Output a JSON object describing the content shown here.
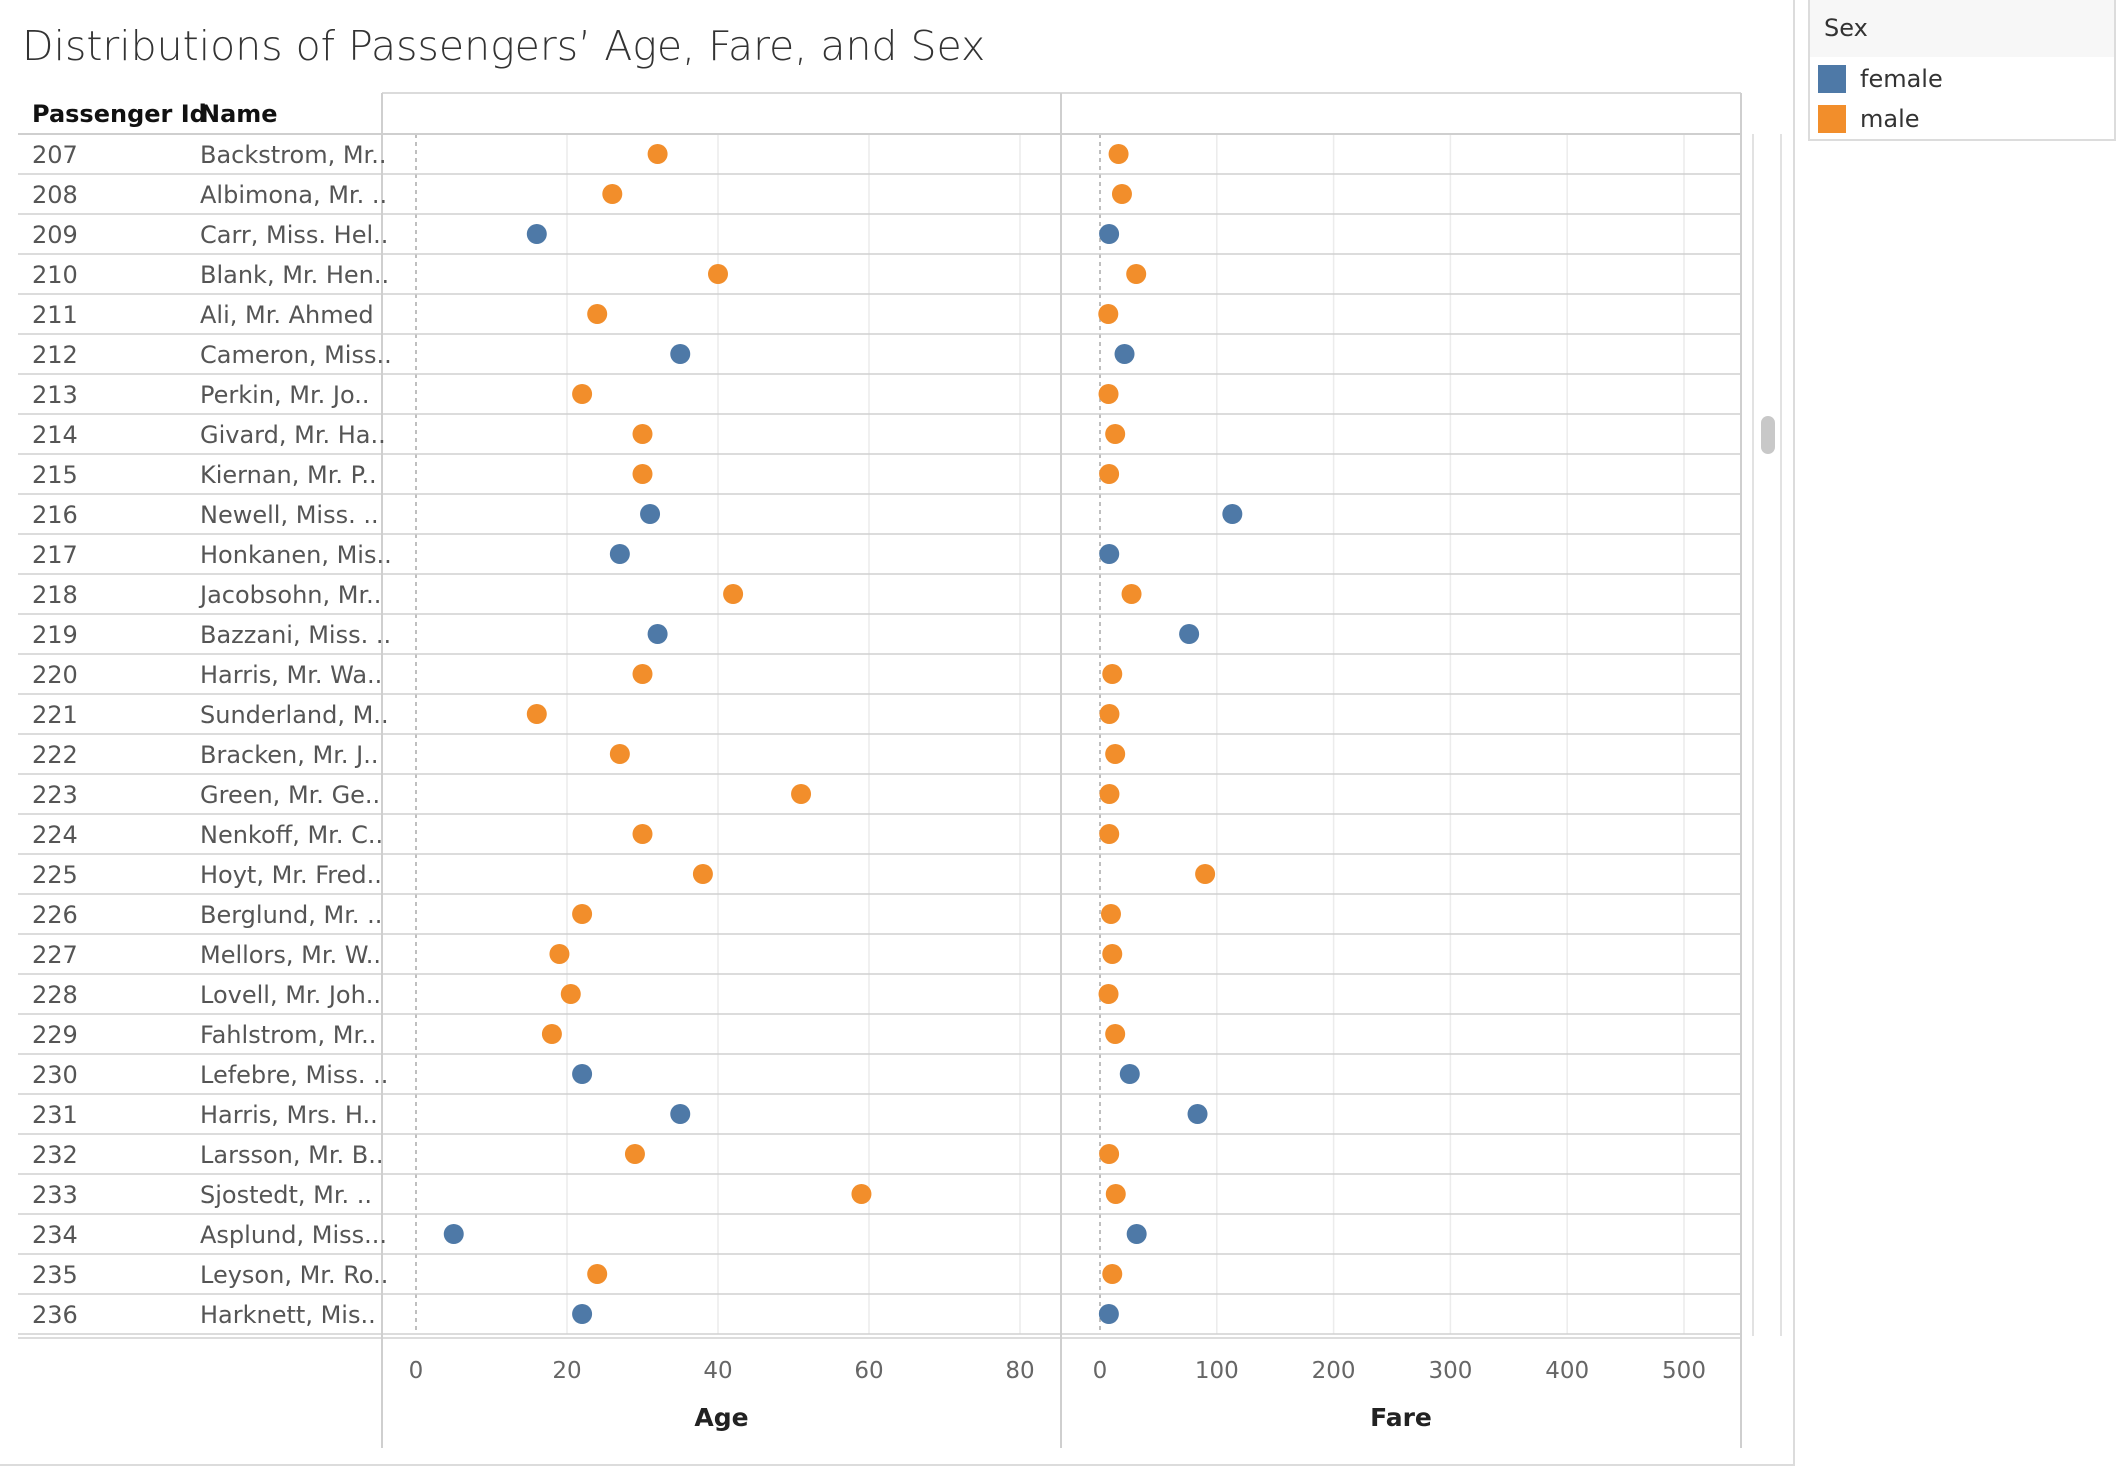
{
  "title": "Distributions of Passengers’ Age, Fare, and Sex",
  "columns": {
    "id_header": "Passenger Id",
    "name_header": "Name"
  },
  "legend": {
    "title": "Sex",
    "items": [
      {
        "label": "female",
        "color": "#4e79a7"
      },
      {
        "label": "male",
        "color": "#f28e2b"
      }
    ]
  },
  "chart_data": {
    "type": "scatter",
    "title": "Distributions of Passengers’ Age, Fare, and Sex",
    "panels": [
      {
        "field": "age",
        "xlabel": "Age",
        "xlim": [
          -4,
          88
        ],
        "ticks": [
          0,
          20,
          40,
          60,
          80
        ]
      },
      {
        "field": "fare",
        "xlabel": "Fare",
        "xlim": [
          -10,
          540
        ],
        "ticks": [
          0,
          100,
          200,
          300,
          400,
          500
        ]
      }
    ],
    "grid": true,
    "legend_position": "top-right",
    "rows": [
      {
        "id": "207",
        "name": "Backstrom, Mr..",
        "sex": "male",
        "age": 32,
        "fare": 15.9
      },
      {
        "id": "208",
        "name": "Albimona, Mr. ..",
        "sex": "male",
        "age": 26,
        "fare": 18.8
      },
      {
        "id": "209",
        "name": "Carr, Miss. Hel..",
        "sex": "female",
        "age": 16,
        "fare": 7.8
      },
      {
        "id": "210",
        "name": "Blank, Mr. Hen..",
        "sex": "male",
        "age": 40,
        "fare": 31
      },
      {
        "id": "211",
        "name": "Ali, Mr. Ahmed",
        "sex": "male",
        "age": 24,
        "fare": 7.1
      },
      {
        "id": "212",
        "name": "Cameron, Miss..",
        "sex": "female",
        "age": 35,
        "fare": 21
      },
      {
        "id": "213",
        "name": "Perkin, Mr. Jo..",
        "sex": "male",
        "age": 22,
        "fare": 7.3
      },
      {
        "id": "214",
        "name": "Givard, Mr. Ha..",
        "sex": "male",
        "age": 30,
        "fare": 13
      },
      {
        "id": "215",
        "name": "Kiernan, Mr. P..",
        "sex": "male",
        "age": 30,
        "fare": 7.8
      },
      {
        "id": "216",
        "name": "Newell, Miss. ..",
        "sex": "female",
        "age": 31,
        "fare": 113.3
      },
      {
        "id": "217",
        "name": "Honkanen, Mis..",
        "sex": "female",
        "age": 27,
        "fare": 7.9
      },
      {
        "id": "218",
        "name": "Jacobsohn, Mr..",
        "sex": "male",
        "age": 42,
        "fare": 27
      },
      {
        "id": "219",
        "name": "Bazzani, Miss. ..",
        "sex": "female",
        "age": 32,
        "fare": 76.3
      },
      {
        "id": "220",
        "name": "Harris, Mr. Wa..",
        "sex": "male",
        "age": 30,
        "fare": 10.5
      },
      {
        "id": "221",
        "name": "Sunderland, M..",
        "sex": "male",
        "age": 16,
        "fare": 8.1
      },
      {
        "id": "222",
        "name": "Bracken, Mr. J..",
        "sex": "male",
        "age": 27,
        "fare": 13
      },
      {
        "id": "223",
        "name": "Green, Mr. Ge..",
        "sex": "male",
        "age": 51,
        "fare": 8.1
      },
      {
        "id": "224",
        "name": "Nenkoff, Mr. C..",
        "sex": "male",
        "age": 30,
        "fare": 7.9
      },
      {
        "id": "225",
        "name": "Hoyt, Mr. Fred..",
        "sex": "male",
        "age": 38,
        "fare": 90
      },
      {
        "id": "226",
        "name": "Berglund, Mr. ..",
        "sex": "male",
        "age": 22,
        "fare": 9.4
      },
      {
        "id": "227",
        "name": "Mellors, Mr. W..",
        "sex": "male",
        "age": 19,
        "fare": 10.5
      },
      {
        "id": "228",
        "name": "Lovell, Mr. Joh..",
        "sex": "male",
        "age": 20.5,
        "fare": 7.3
      },
      {
        "id": "229",
        "name": "Fahlstrom, Mr..",
        "sex": "male",
        "age": 18,
        "fare": 13
      },
      {
        "id": "230",
        "name": "Lefebre, Miss. ..",
        "sex": "female",
        "age": 22,
        "fare": 25.5
      },
      {
        "id": "231",
        "name": "Harris, Mrs. H..",
        "sex": "female",
        "age": 35,
        "fare": 83.5
      },
      {
        "id": "232",
        "name": "Larsson, Mr. B..",
        "sex": "male",
        "age": 29,
        "fare": 7.8
      },
      {
        "id": "233",
        "name": "Sjostedt, Mr. ..",
        "sex": "male",
        "age": 59,
        "fare": 13.5
      },
      {
        "id": "234",
        "name": "Asplund, Miss...",
        "sex": "female",
        "age": 5,
        "fare": 31.4
      },
      {
        "id": "235",
        "name": "Leyson, Mr. Ro..",
        "sex": "male",
        "age": 24,
        "fare": 10.5
      },
      {
        "id": "236",
        "name": "Harknett, Mis..",
        "sex": "female",
        "age": 22,
        "fare": 7.6
      }
    ]
  }
}
